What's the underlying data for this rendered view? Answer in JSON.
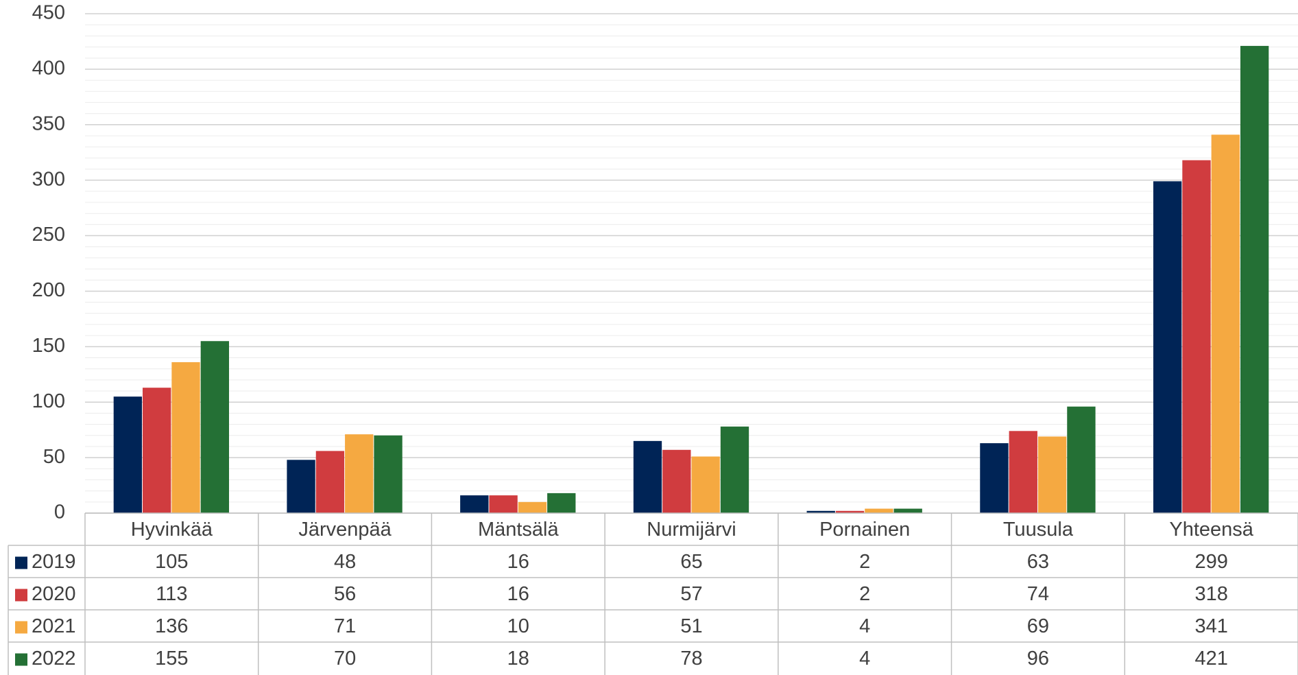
{
  "chart_data": {
    "type": "bar",
    "categories": [
      "Hyvinkää",
      "Järvenpää",
      "Mäntsälä",
      "Nurmijärvi",
      "Pornainen",
      "Tuusula",
      "Yhteensä"
    ],
    "series": [
      {
        "name": "2019",
        "color": "#002456",
        "values": [
          105,
          48,
          16,
          65,
          2,
          63,
          299
        ]
      },
      {
        "name": "2020",
        "color": "#d03c3f",
        "values": [
          113,
          56,
          16,
          57,
          2,
          74,
          318
        ]
      },
      {
        "name": "2021",
        "color": "#f5a941",
        "values": [
          136,
          71,
          10,
          51,
          4,
          69,
          341
        ]
      },
      {
        "name": "2022",
        "color": "#247035",
        "values": [
          155,
          70,
          18,
          78,
          4,
          96,
          421
        ]
      }
    ],
    "ylim": [
      0,
      450
    ],
    "yticks": [
      0,
      50,
      100,
      150,
      200,
      250,
      300,
      350,
      400,
      450
    ],
    "grid": true,
    "minor_grid": true,
    "data_table": true
  }
}
